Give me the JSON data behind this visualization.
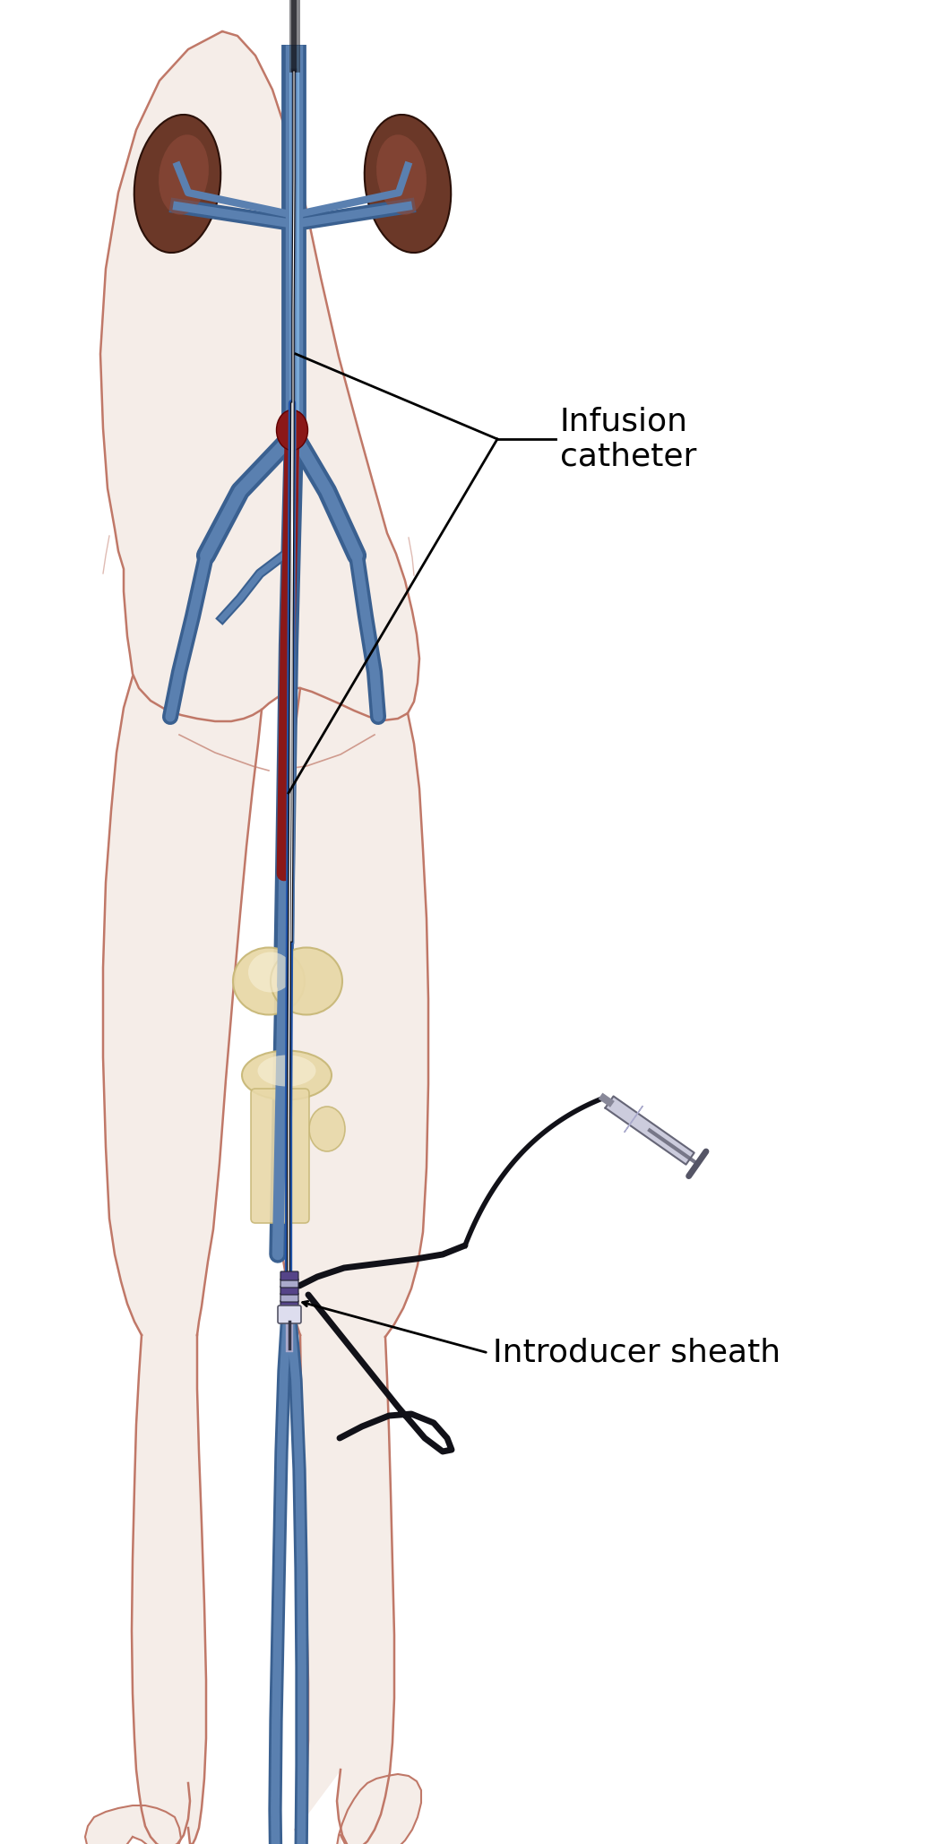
{
  "bg_color": "#ffffff",
  "skin_fill": "#f5ede8",
  "skin_outline": "#c07868",
  "kidney_dark": "#6b3828",
  "kidney_mid": "#8b4838",
  "kidney_light": "#a05848",
  "vein_blue_dark": "#3a6090",
  "vein_blue_mid": "#5a80b0",
  "vein_blue_light": "#7aaad8",
  "artery_dark": "#7a1010",
  "thrombus": "#8b1818",
  "catheter_black": "#111118",
  "catheter_blue": "#2255aa",
  "bone_fill": "#e8d8a8",
  "bone_shadow": "#c8b878",
  "sheath_purple": "#554488",
  "sheath_silver": "#aaaacc",
  "sheath_white": "#ddddee",
  "device_dark": "#333344",
  "label_infusion": "Infusion\ncatheter",
  "label_sheath": "Introducer sheath",
  "figsize": [
    10.49,
    20.58
  ],
  "dpi": 100
}
